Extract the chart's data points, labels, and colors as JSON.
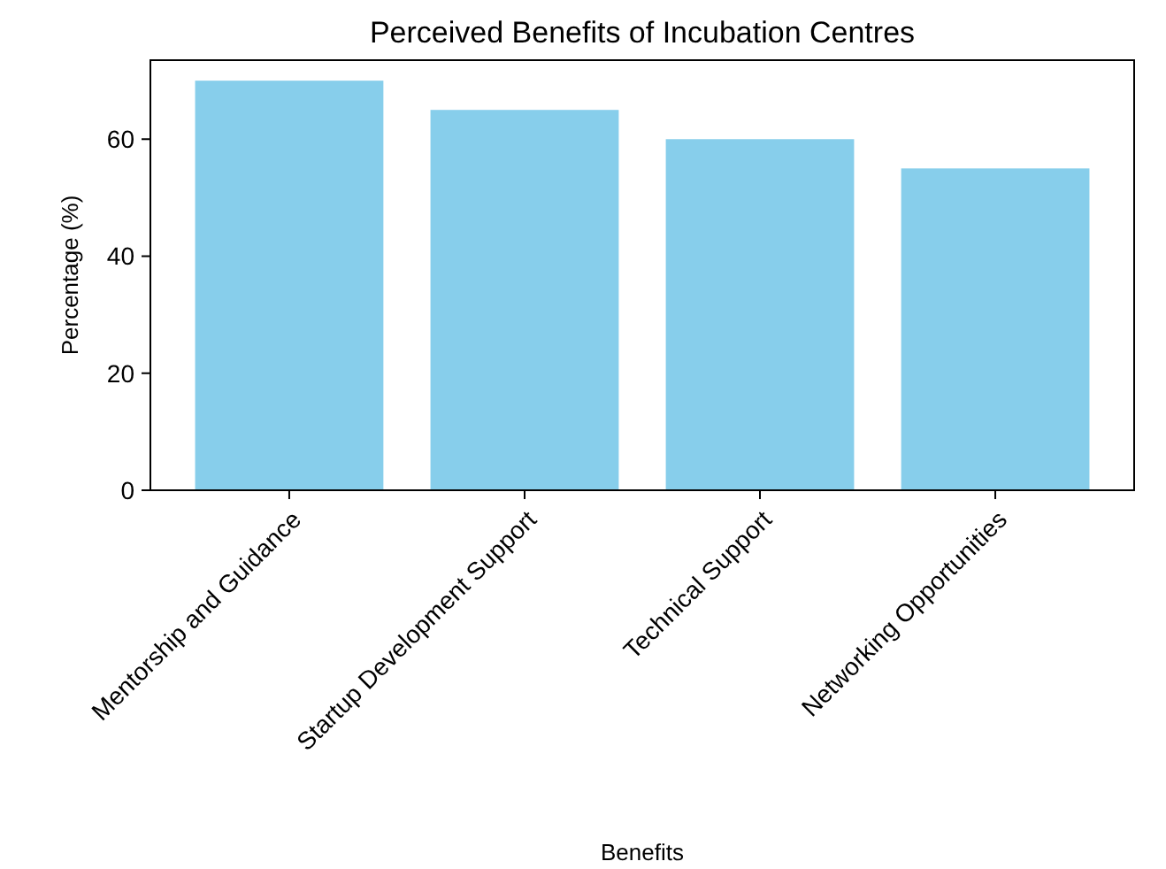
{
  "chart_data": {
    "type": "bar",
    "title": "Perceived Benefits of Incubation Centres",
    "xlabel": "Benefits",
    "ylabel": "Percentage (%)",
    "categories": [
      "Mentorship and Guidance",
      "Startup Development Support",
      "Technical Support",
      "Networking Opportunities"
    ],
    "values": [
      70,
      65,
      60,
      55
    ],
    "color": "#87ceeb",
    "ylim": [
      0,
      73.5
    ],
    "yticks": [
      0,
      20,
      40,
      60
    ],
    "grid": false
  }
}
